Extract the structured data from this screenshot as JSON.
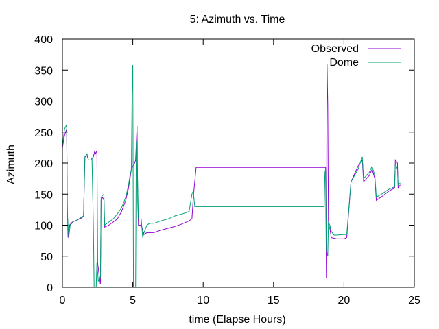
{
  "chart_data": {
    "type": "line",
    "title": "5: Azimuth vs. Time",
    "xlabel": "time (Elapse Hours)",
    "ylabel": "Azimuth",
    "xlim": [
      0,
      25
    ],
    "ylim": [
      0,
      400
    ],
    "x_ticks": [
      0,
      5,
      10,
      15,
      20,
      25
    ],
    "y_ticks": [
      0,
      50,
      100,
      150,
      200,
      250,
      300,
      350,
      400
    ],
    "x_tick_labels": [
      "0",
      "5",
      "10",
      "15",
      "20",
      "25"
    ],
    "y_tick_labels": [
      "0",
      "50",
      "100",
      "150",
      "200",
      "250",
      "300",
      "350",
      "400"
    ],
    "grid": false,
    "legend": "top-right",
    "series": [
      {
        "name": "Observed",
        "color": "#9400d3",
        "points": [
          [
            0.0,
            225
          ],
          [
            0.15,
            245
          ],
          [
            0.3,
            255
          ],
          [
            0.35,
            130
          ],
          [
            0.4,
            80
          ],
          [
            0.5,
            100
          ],
          [
            0.7,
            105
          ],
          [
            1.0,
            108
          ],
          [
            1.4,
            112
          ],
          [
            1.5,
            115
          ],
          [
            1.6,
            210
          ],
          [
            1.75,
            212
          ],
          [
            1.85,
            205
          ],
          [
            2.0,
            205
          ],
          [
            2.2,
            210
          ],
          [
            2.3,
            220
          ],
          [
            2.35,
            215
          ],
          [
            2.45,
            220
          ],
          [
            2.5,
            40
          ],
          [
            2.6,
            20
          ],
          [
            2.7,
            5
          ],
          [
            2.75,
            140
          ],
          [
            2.85,
            145
          ],
          [
            2.95,
            140
          ],
          [
            3.0,
            97
          ],
          [
            3.3,
            100
          ],
          [
            3.6,
            105
          ],
          [
            3.9,
            110
          ],
          [
            4.2,
            122
          ],
          [
            4.5,
            140
          ],
          [
            4.7,
            160
          ],
          [
            4.8,
            175
          ],
          [
            4.9,
            190
          ],
          [
            5.0,
            195
          ],
          [
            5.1,
            198
          ],
          [
            5.2,
            205
          ],
          [
            5.3,
            260
          ],
          [
            5.35,
            140
          ],
          [
            5.4,
            100
          ],
          [
            5.6,
            100
          ],
          [
            5.8,
            85
          ],
          [
            6.0,
            88
          ],
          [
            6.5,
            88
          ],
          [
            7.0,
            92
          ],
          [
            7.5,
            95
          ],
          [
            8.0,
            98
          ],
          [
            8.5,
            102
          ],
          [
            9.0,
            107
          ],
          [
            9.2,
            110
          ],
          [
            9.3,
            145
          ],
          [
            9.5,
            193
          ],
          [
            18.7,
            193
          ],
          [
            18.75,
            15
          ],
          [
            18.8,
            360
          ],
          [
            18.85,
            295
          ],
          [
            18.9,
            100
          ],
          [
            19.0,
            95
          ],
          [
            19.1,
            80
          ],
          [
            19.5,
            78
          ],
          [
            20.0,
            78
          ],
          [
            20.2,
            80
          ],
          [
            20.5,
            170
          ],
          [
            21.0,
            195
          ],
          [
            21.3,
            205
          ],
          [
            21.4,
            170
          ],
          [
            21.8,
            180
          ],
          [
            22.0,
            190
          ],
          [
            22.2,
            175
          ],
          [
            22.3,
            140
          ],
          [
            22.8,
            148
          ],
          [
            23.2,
            155
          ],
          [
            23.6,
            160
          ],
          [
            23.65,
            205
          ],
          [
            23.8,
            200
          ],
          [
            23.85,
            160
          ],
          [
            24.0,
            165
          ]
        ]
      },
      {
        "name": "Dome",
        "color": "#009e73",
        "points": [
          [
            0.0,
            228
          ],
          [
            0.15,
            255
          ],
          [
            0.3,
            262
          ],
          [
            0.35,
            120
          ],
          [
            0.45,
            80
          ],
          [
            0.55,
            100
          ],
          [
            0.8,
            106
          ],
          [
            1.0,
            108
          ],
          [
            1.3,
            112
          ],
          [
            1.5,
            115
          ],
          [
            1.6,
            210
          ],
          [
            1.75,
            215
          ],
          [
            1.85,
            205
          ],
          [
            2.0,
            205
          ],
          [
            2.1,
            208
          ],
          [
            2.2,
            100
          ],
          [
            2.25,
            0
          ],
          [
            2.4,
            0
          ],
          [
            2.45,
            40
          ],
          [
            2.55,
            10
          ],
          [
            2.7,
            15
          ],
          [
            2.75,
            145
          ],
          [
            2.85,
            148
          ],
          [
            2.95,
            150
          ],
          [
            3.0,
            100
          ],
          [
            3.3,
            105
          ],
          [
            3.6,
            110
          ],
          [
            3.9,
            118
          ],
          [
            4.2,
            128
          ],
          [
            4.5,
            145
          ],
          [
            4.7,
            165
          ],
          [
            4.8,
            180
          ],
          [
            4.9,
            190
          ],
          [
            4.95,
            315
          ],
          [
            5.0,
            358
          ],
          [
            5.05,
            0
          ],
          [
            5.2,
            0
          ],
          [
            5.25,
            235
          ],
          [
            5.3,
            215
          ],
          [
            5.4,
            110
          ],
          [
            5.6,
            110
          ],
          [
            5.7,
            80
          ],
          [
            5.8,
            88
          ],
          [
            6.0,
            100
          ],
          [
            6.2,
            103
          ],
          [
            6.5,
            103
          ],
          [
            7.0,
            107
          ],
          [
            7.5,
            110
          ],
          [
            8.0,
            115
          ],
          [
            8.5,
            118
          ],
          [
            9.0,
            122
          ],
          [
            9.2,
            150
          ],
          [
            9.3,
            155
          ],
          [
            9.4,
            130
          ],
          [
            18.6,
            130
          ],
          [
            18.65,
            185
          ],
          [
            18.7,
            190
          ],
          [
            18.75,
            60
          ],
          [
            18.85,
            50
          ],
          [
            18.9,
            105
          ],
          [
            19.0,
            100
          ],
          [
            19.1,
            90
          ],
          [
            19.3,
            84
          ],
          [
            19.5,
            84
          ],
          [
            20.0,
            85
          ],
          [
            20.2,
            85
          ],
          [
            20.5,
            170
          ],
          [
            21.0,
            190
          ],
          [
            21.3,
            210
          ],
          [
            21.4,
            175
          ],
          [
            21.8,
            185
          ],
          [
            22.0,
            195
          ],
          [
            22.2,
            180
          ],
          [
            22.3,
            145
          ],
          [
            22.8,
            152
          ],
          [
            23.2,
            158
          ],
          [
            23.6,
            162
          ],
          [
            23.65,
            200
          ],
          [
            23.8,
            190
          ],
          [
            23.85,
            165
          ],
          [
            24.0,
            168
          ]
        ]
      }
    ]
  }
}
